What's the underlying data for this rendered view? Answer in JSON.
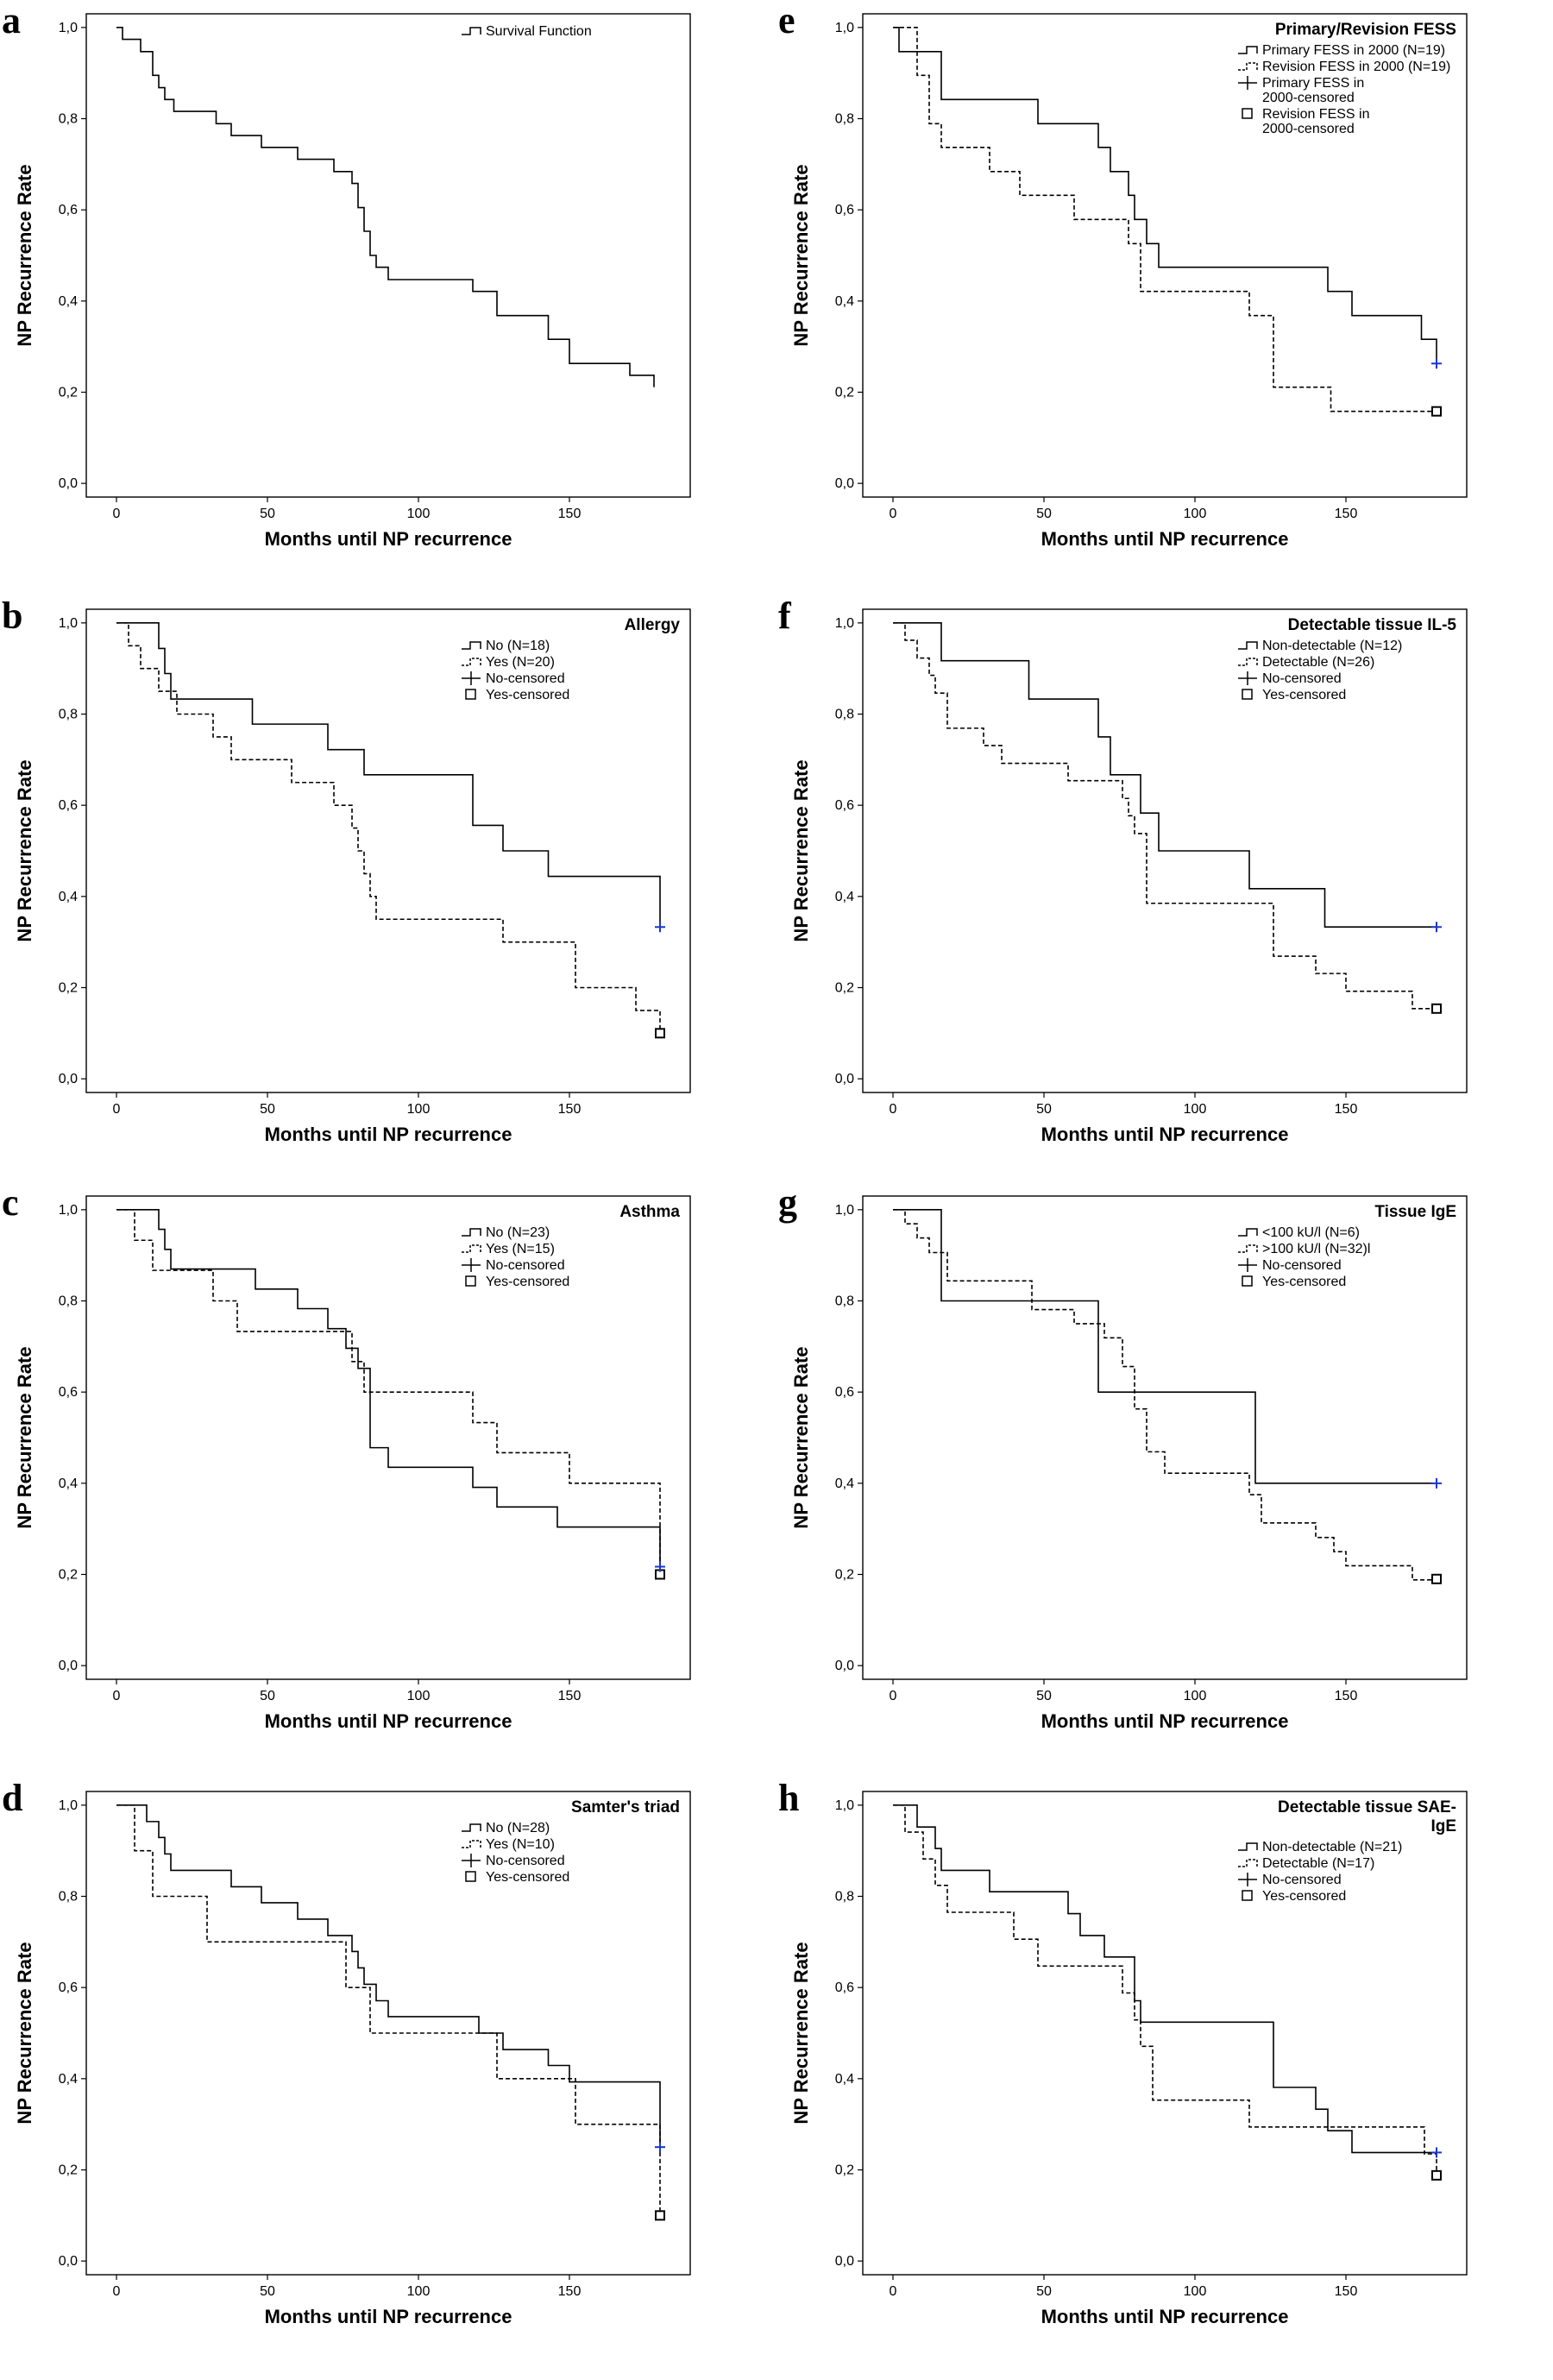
{
  "chart_data": [
    {
      "type": "line",
      "letter": "a",
      "legend_title": "",
      "xlabel": "Months until NP recurrence",
      "ylabel": "NP Recurrence Rate",
      "xlim": [
        -10,
        190
      ],
      "ylim": [
        -0.03,
        1.03
      ],
      "xticks": [
        "0",
        "50",
        "100",
        "150"
      ],
      "yticks": [
        "0,0",
        "0,2",
        "0,4",
        "0,6",
        "0,8",
        "1,0"
      ],
      "series": [
        {
          "name": "Survival Function",
          "style": "solid",
          "color": "#000000",
          "x": [
            0,
            2,
            8,
            12,
            14,
            16,
            19,
            33,
            38,
            48,
            60,
            72,
            78,
            80,
            82,
            84,
            86,
            90,
            118,
            126,
            143,
            150,
            170,
            178
          ],
          "y": [
            1.0,
            0.974,
            0.947,
            0.895,
            0.868,
            0.842,
            0.816,
            0.789,
            0.763,
            0.737,
            0.711,
            0.684,
            0.658,
            0.605,
            0.553,
            0.5,
            0.474,
            0.447,
            0.421,
            0.368,
            0.316,
            0.263,
            0.237,
            0.211
          ]
        }
      ],
      "legend": [
        {
          "label": "Survival Function",
          "marker": "step-solid"
        }
      ]
    },
    {
      "type": "line",
      "letter": "b",
      "legend_title": "Allergy",
      "xlabel": "Months until NP recurrence",
      "ylabel": "NP Recurrence Rate",
      "xlim": [
        -10,
        190
      ],
      "ylim": [
        -0.03,
        1.03
      ],
      "xticks": [
        "0",
        "50",
        "100",
        "150"
      ],
      "yticks": [
        "0,0",
        "0,2",
        "0,4",
        "0,6",
        "0,8",
        "1,0"
      ],
      "series": [
        {
          "name": "No (N=18)",
          "style": "solid",
          "color": "#000000",
          "x": [
            0,
            14,
            16,
            18,
            45,
            70,
            82,
            118,
            128,
            143,
            180
          ],
          "y": [
            1.0,
            0.944,
            0.889,
            0.833,
            0.778,
            0.722,
            0.667,
            0.556,
            0.5,
            0.444,
            0.333
          ],
          "censor": {
            "x": 180,
            "y": 0.333,
            "marker": "plus"
          }
        },
        {
          "name": "Yes (N=20)",
          "style": "dashed",
          "color": "#000000",
          "x": [
            0,
            4,
            8,
            14,
            20,
            32,
            38,
            58,
            72,
            78,
            80,
            82,
            84,
            86,
            128,
            152,
            172,
            180
          ],
          "y": [
            1.0,
            0.95,
            0.9,
            0.85,
            0.8,
            0.75,
            0.7,
            0.65,
            0.6,
            0.55,
            0.5,
            0.45,
            0.4,
            0.35,
            0.3,
            0.2,
            0.15,
            0.1
          ],
          "censor": {
            "x": 180,
            "y": 0.1,
            "marker": "square"
          }
        }
      ],
      "legend": [
        {
          "label": "No (N=18)",
          "marker": "step-solid"
        },
        {
          "label": "Yes (N=20)",
          "marker": "step-dashed"
        },
        {
          "label": "No-censored",
          "marker": "plus"
        },
        {
          "label": "Yes-censored",
          "marker": "square"
        }
      ]
    },
    {
      "type": "line",
      "letter": "c",
      "legend_title": "Asthma",
      "xlabel": "Months until NP recurrence",
      "ylabel": "NP Recurrence Rate",
      "xlim": [
        -10,
        190
      ],
      "ylim": [
        -0.03,
        1.03
      ],
      "xticks": [
        "0",
        "50",
        "100",
        "150"
      ],
      "yticks": [
        "0,0",
        "0,2",
        "0,4",
        "0,6",
        "0,8",
        "1,0"
      ],
      "series": [
        {
          "name": "No (N=23)",
          "style": "solid",
          "color": "#000000",
          "x": [
            0,
            14,
            16,
            18,
            46,
            60,
            70,
            76,
            80,
            84,
            90,
            118,
            126,
            146,
            180
          ],
          "y": [
            1.0,
            0.957,
            0.913,
            0.87,
            0.826,
            0.783,
            0.739,
            0.696,
            0.652,
            0.478,
            0.435,
            0.391,
            0.348,
            0.304,
            0.217
          ],
          "censor": {
            "x": 180,
            "y": 0.217,
            "marker": "plus"
          }
        },
        {
          "name": "Yes (N=15)",
          "style": "dashed",
          "color": "#000000",
          "x": [
            0,
            6,
            12,
            32,
            40,
            78,
            82,
            118,
            126,
            150,
            180
          ],
          "y": [
            1.0,
            0.933,
            0.867,
            0.8,
            0.733,
            0.667,
            0.6,
            0.533,
            0.467,
            0.4,
            0.2
          ],
          "censor": {
            "x": 180,
            "y": 0.2,
            "marker": "square"
          }
        }
      ],
      "legend": [
        {
          "label": "No (N=23)",
          "marker": "step-solid"
        },
        {
          "label": "Yes (N=15)",
          "marker": "step-dashed"
        },
        {
          "label": "No-censored",
          "marker": "plus"
        },
        {
          "label": "Yes-censored",
          "marker": "square"
        }
      ]
    },
    {
      "type": "line",
      "letter": "d",
      "legend_title": "Samter's triad",
      "xlabel": "Months until NP recurrence",
      "ylabel": "NP Recurrence Rate",
      "xlim": [
        -10,
        190
      ],
      "ylim": [
        -0.03,
        1.03
      ],
      "xticks": [
        "0",
        "50",
        "100",
        "150"
      ],
      "yticks": [
        "0,0",
        "0,2",
        "0,4",
        "0,6",
        "0,8",
        "1,0"
      ],
      "series": [
        {
          "name": "No (N=28)",
          "style": "solid",
          "color": "#000000",
          "x": [
            0,
            10,
            14,
            16,
            18,
            38,
            48,
            60,
            70,
            78,
            80,
            82,
            86,
            90,
            120,
            128,
            143,
            150,
            180
          ],
          "y": [
            1.0,
            0.964,
            0.929,
            0.893,
            0.857,
            0.821,
            0.786,
            0.75,
            0.714,
            0.679,
            0.643,
            0.607,
            0.571,
            0.536,
            0.5,
            0.464,
            0.429,
            0.393,
            0.25
          ],
          "censor": {
            "x": 180,
            "y": 0.25,
            "marker": "plus"
          }
        },
        {
          "name": "Yes (N=10)",
          "style": "dashed",
          "color": "#000000",
          "x": [
            0,
            6,
            12,
            30,
            76,
            84,
            126,
            152,
            180
          ],
          "y": [
            1.0,
            0.9,
            0.8,
            0.7,
            0.6,
            0.5,
            0.4,
            0.3,
            0.1
          ],
          "censor": {
            "x": 180,
            "y": 0.1,
            "marker": "square"
          }
        }
      ],
      "legend": [
        {
          "label": "No (N=28)",
          "marker": "step-solid"
        },
        {
          "label": "Yes (N=10)",
          "marker": "step-dashed"
        },
        {
          "label": "No-censored",
          "marker": "plus"
        },
        {
          "label": "Yes-censored",
          "marker": "square"
        }
      ]
    },
    {
      "type": "line",
      "letter": "e",
      "legend_title": "Primary/Revision FESS",
      "xlabel": "Months until NP recurrence",
      "ylabel": "NP Recurrence Rate",
      "xlim": [
        -10,
        190
      ],
      "ylim": [
        -0.03,
        1.03
      ],
      "xticks": [
        "0",
        "50",
        "100",
        "150"
      ],
      "yticks": [
        "0,0",
        "0,2",
        "0,4",
        "0,6",
        "0,8",
        "1,0"
      ],
      "series": [
        {
          "name": "Primary FESS in 2000 (N=19)",
          "style": "solid",
          "color": "#000000",
          "x": [
            0,
            2,
            16,
            48,
            68,
            72,
            78,
            80,
            84,
            88,
            144,
            152,
            175,
            180
          ],
          "y": [
            1.0,
            0.947,
            0.842,
            0.789,
            0.737,
            0.684,
            0.632,
            0.579,
            0.526,
            0.474,
            0.421,
            0.368,
            0.316,
            0.263
          ],
          "censor": {
            "x": 180,
            "y": 0.263,
            "marker": "plus"
          }
        },
        {
          "name": "Revision FESS in 2000 (N=19)",
          "style": "dashed",
          "color": "#000000",
          "x": [
            0,
            8,
            12,
            16,
            32,
            42,
            60,
            78,
            82,
            118,
            126,
            145,
            180
          ],
          "y": [
            1.0,
            0.895,
            0.789,
            0.737,
            0.684,
            0.632,
            0.579,
            0.526,
            0.421,
            0.368,
            0.211,
            0.158,
            0.158
          ],
          "censor": {
            "x": 180,
            "y": 0.158,
            "marker": "square"
          }
        }
      ],
      "legend": [
        {
          "label": "Primary FESS in 2000 (N=19)",
          "marker": "step-solid"
        },
        {
          "label": "Revision FESS in 2000 (N=19)",
          "marker": "step-dashed"
        },
        {
          "label": "Primary FESS in 2000-censored",
          "marker": "plus"
        },
        {
          "label": "Revision FESS in 2000-censored",
          "marker": "square"
        }
      ]
    },
    {
      "type": "line",
      "letter": "f",
      "legend_title": "Detectable tissue IL-5",
      "xlabel": "Months until NP recurrence",
      "ylabel": "NP Recurrence Rate",
      "xlim": [
        -10,
        190
      ],
      "ylim": [
        -0.03,
        1.03
      ],
      "xticks": [
        "0",
        "50",
        "100",
        "150"
      ],
      "yticks": [
        "0,0",
        "0,2",
        "0,4",
        "0,6",
        "0,8",
        "1,0"
      ],
      "series": [
        {
          "name": "Non-detectable (N=12)",
          "style": "solid",
          "color": "#000000",
          "x": [
            0,
            16,
            45,
            68,
            72,
            82,
            88,
            118,
            143,
            180
          ],
          "y": [
            1.0,
            0.917,
            0.833,
            0.75,
            0.667,
            0.583,
            0.5,
            0.417,
            0.333,
            0.333
          ],
          "censor": {
            "x": 180,
            "y": 0.333,
            "marker": "plus"
          }
        },
        {
          "name": "Detectable (N=26)",
          "style": "dashed",
          "color": "#000000",
          "x": [
            0,
            4,
            8,
            12,
            14,
            18,
            30,
            36,
            58,
            76,
            78,
            80,
            84,
            126,
            140,
            150,
            172,
            180
          ],
          "y": [
            1.0,
            0.962,
            0.923,
            0.885,
            0.846,
            0.769,
            0.731,
            0.692,
            0.654,
            0.615,
            0.577,
            0.538,
            0.385,
            0.269,
            0.231,
            0.192,
            0.154,
            0.154
          ],
          "censor": {
            "x": 180,
            "y": 0.154,
            "marker": "square"
          }
        }
      ],
      "legend": [
        {
          "label": "Non-detectable (N=12)",
          "marker": "step-solid"
        },
        {
          "label": "Detectable (N=26)",
          "marker": "step-dashed"
        },
        {
          "label": "No-censored",
          "marker": "plus"
        },
        {
          "label": "Yes-censored",
          "marker": "square"
        }
      ]
    },
    {
      "type": "line",
      "letter": "g",
      "legend_title": "Tissue IgE",
      "xlabel": "Months until NP recurrence",
      "ylabel": "NP Recurrence Rate",
      "xlim": [
        -10,
        190
      ],
      "ylim": [
        -0.03,
        1.03
      ],
      "xticks": [
        "0",
        "50",
        "100",
        "150"
      ],
      "yticks": [
        "0,0",
        "0,2",
        "0,4",
        "0,6",
        "0,8",
        "1,0"
      ],
      "series": [
        {
          "name": "<100 kU/l (N=6)",
          "style": "solid",
          "color": "#000000",
          "x": [
            0,
            16,
            68,
            120,
            180
          ],
          "y": [
            1.0,
            0.8,
            0.6,
            0.4,
            0.4
          ],
          "censor": {
            "x": 180,
            "y": 0.4,
            "marker": "plus"
          }
        },
        {
          "name": ">100 kU/l (N=32)",
          "style": "dashed",
          "color": "#000000",
          "x": [
            0,
            4,
            8,
            12,
            18,
            46,
            60,
            70,
            76,
            80,
            84,
            90,
            118,
            122,
            140,
            146,
            150,
            172,
            180
          ],
          "y": [
            1.0,
            0.969,
            0.938,
            0.906,
            0.844,
            0.781,
            0.75,
            0.719,
            0.656,
            0.563,
            0.469,
            0.422,
            0.375,
            0.313,
            0.281,
            0.25,
            0.219,
            0.188,
            0.188
          ],
          "censor": {
            "x": 180,
            "y": 0.19,
            "marker": "square"
          }
        }
      ],
      "legend": [
        {
          "label": "<100 kU/l (N=6)",
          "marker": "step-solid"
        },
        {
          "label": ">100 kU/l (N=32)l",
          "marker": "step-dashed"
        },
        {
          "label": "No-censored",
          "marker": "plus"
        },
        {
          "label": "Yes-censored",
          "marker": "square"
        }
      ]
    },
    {
      "type": "line",
      "letter": "h",
      "legend_title": "Detectable tissue SAE-IgE",
      "xlabel": "Months until NP recurrence",
      "ylabel": "NP Recurrence Rate",
      "xlim": [
        -10,
        190
      ],
      "ylim": [
        -0.03,
        1.03
      ],
      "xticks": [
        "0",
        "50",
        "100",
        "150"
      ],
      "yticks": [
        "0,0",
        "0,2",
        "0,4",
        "0,6",
        "0,8",
        "1,0"
      ],
      "series": [
        {
          "name": "Non-detectable (N=21)",
          "style": "solid",
          "color": "#000000",
          "x": [
            0,
            8,
            14,
            16,
            32,
            58,
            62,
            70,
            80,
            82,
            126,
            140,
            144,
            152,
            180
          ],
          "y": [
            1.0,
            0.952,
            0.905,
            0.857,
            0.81,
            0.762,
            0.714,
            0.667,
            0.571,
            0.524,
            0.381,
            0.333,
            0.286,
            0.238,
            0.238
          ],
          "censor": {
            "x": 180,
            "y": 0.238,
            "marker": "plus"
          }
        },
        {
          "name": "Detectable (N=17)",
          "style": "dashed",
          "color": "#000000",
          "x": [
            0,
            4,
            10,
            14,
            18,
            40,
            48,
            76,
            80,
            82,
            86,
            118,
            176,
            180
          ],
          "y": [
            1.0,
            0.941,
            0.882,
            0.824,
            0.765,
            0.706,
            0.647,
            0.588,
            0.529,
            0.471,
            0.353,
            0.294,
            0.235,
            0.188
          ],
          "censor": {
            "x": 180,
            "y": 0.188,
            "marker": "square"
          }
        }
      ],
      "legend": [
        {
          "label": "Non-detectable (N=21)",
          "marker": "step-solid"
        },
        {
          "label": "Detectable (N=17)",
          "marker": "step-dashed"
        },
        {
          "label": "No-censored",
          "marker": "plus"
        },
        {
          "label": "Yes-censored",
          "marker": "square"
        }
      ]
    }
  ]
}
